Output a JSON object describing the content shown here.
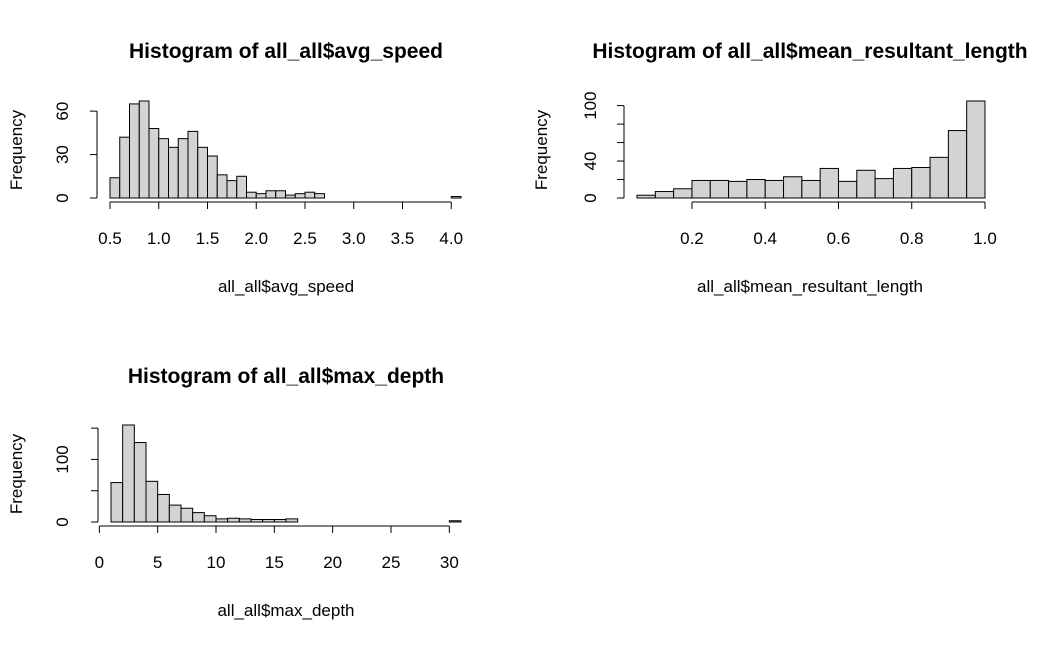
{
  "chart_data": [
    {
      "type": "bar",
      "title": "Histogram of all_all$avg_speed",
      "xlabel": "all_all$avg_speed",
      "ylabel": "Frequency",
      "bin_edges": [
        0.5,
        0.6,
        0.7,
        0.8,
        0.9,
        1.0,
        1.1,
        1.2,
        1.3,
        1.4,
        1.5,
        1.6,
        1.7,
        1.8,
        1.9,
        2.0,
        2.1,
        2.2,
        2.3,
        2.4,
        2.5,
        2.6,
        2.7,
        2.8,
        2.9,
        3.0,
        3.1,
        3.2,
        3.3,
        3.4,
        3.5,
        3.6,
        3.7,
        3.8,
        3.9,
        4.0,
        4.1
      ],
      "values": [
        14,
        42,
        65,
        67,
        48,
        41,
        35,
        41,
        46,
        35,
        29,
        16,
        12,
        15,
        4,
        3,
        5,
        5,
        2,
        3,
        4,
        3,
        0,
        0,
        0,
        0,
        0,
        0,
        0,
        0,
        0,
        0,
        0,
        0,
        0,
        1
      ],
      "xticks": [
        "0.5",
        "1.0",
        "1.5",
        "2.0",
        "2.5",
        "3.0",
        "3.5",
        "4.0"
      ],
      "xtick_values": [
        0.5,
        1.0,
        1.5,
        2.0,
        2.5,
        3.0,
        3.5,
        4.0
      ],
      "yticks": [
        "0",
        "30",
        "60"
      ],
      "ytick_values": [
        0,
        30,
        60
      ],
      "xlim": [
        0.5,
        4.1
      ],
      "ylim": [
        0,
        67
      ],
      "bar_fill": "#d3d3d3"
    },
    {
      "type": "bar",
      "title": "Histogram of all_all$mean_resultant_length",
      "xlabel": "all_all$mean_resultant_length",
      "ylabel": "Frequency",
      "bin_edges": [
        0.05,
        0.1,
        0.15,
        0.2,
        0.25,
        0.3,
        0.35,
        0.4,
        0.45,
        0.5,
        0.55,
        0.6,
        0.65,
        0.7,
        0.75,
        0.8,
        0.85,
        0.9,
        0.95,
        1.0
      ],
      "values": [
        3,
        7,
        10,
        19,
        19,
        18,
        20,
        19,
        23,
        19,
        32,
        18,
        30,
        21,
        32,
        33,
        44,
        73,
        105
      ],
      "xticks": [
        "0.2",
        "0.4",
        "0.6",
        "0.8",
        "1.0"
      ],
      "xtick_values": [
        0.2,
        0.4,
        0.6,
        0.8,
        1.0
      ],
      "yticks": [
        "0",
        "40",
        "100"
      ],
      "ytick_values": [
        0,
        40,
        100
      ],
      "minor_ytick_values": [
        20,
        60,
        80
      ],
      "xlim": [
        0.05,
        1.0
      ],
      "ylim": [
        0,
        105
      ],
      "bar_fill": "#d3d3d3"
    },
    {
      "type": "bar",
      "title": "Histogram of all_all$max_depth",
      "xlabel": "all_all$max_depth",
      "ylabel": "Frequency",
      "bin_edges": [
        1,
        2,
        3,
        4,
        5,
        6,
        7,
        8,
        9,
        10,
        11,
        12,
        13,
        14,
        15,
        16,
        17,
        18,
        19,
        20,
        21,
        22,
        23,
        24,
        25,
        26,
        27,
        28,
        29,
        30,
        31
      ],
      "values": [
        63,
        155,
        127,
        65,
        44,
        27,
        22,
        15,
        10,
        5,
        6,
        5,
        4,
        4,
        4,
        5,
        0,
        0,
        0,
        0,
        0,
        0,
        0,
        0,
        0,
        0,
        0,
        0,
        0,
        2
      ],
      "xticks": [
        "0",
        "5",
        "10",
        "15",
        "20",
        "25",
        "30"
      ],
      "xtick_values": [
        0,
        5,
        10,
        15,
        20,
        25,
        30
      ],
      "yticks": [
        "0",
        "100"
      ],
      "ytick_values": [
        0,
        100
      ],
      "minor_ytick_values": [
        50,
        150
      ],
      "xlim": [
        1,
        31
      ],
      "ylim": [
        0,
        155
      ],
      "bar_fill": "#d3d3d3"
    }
  ]
}
